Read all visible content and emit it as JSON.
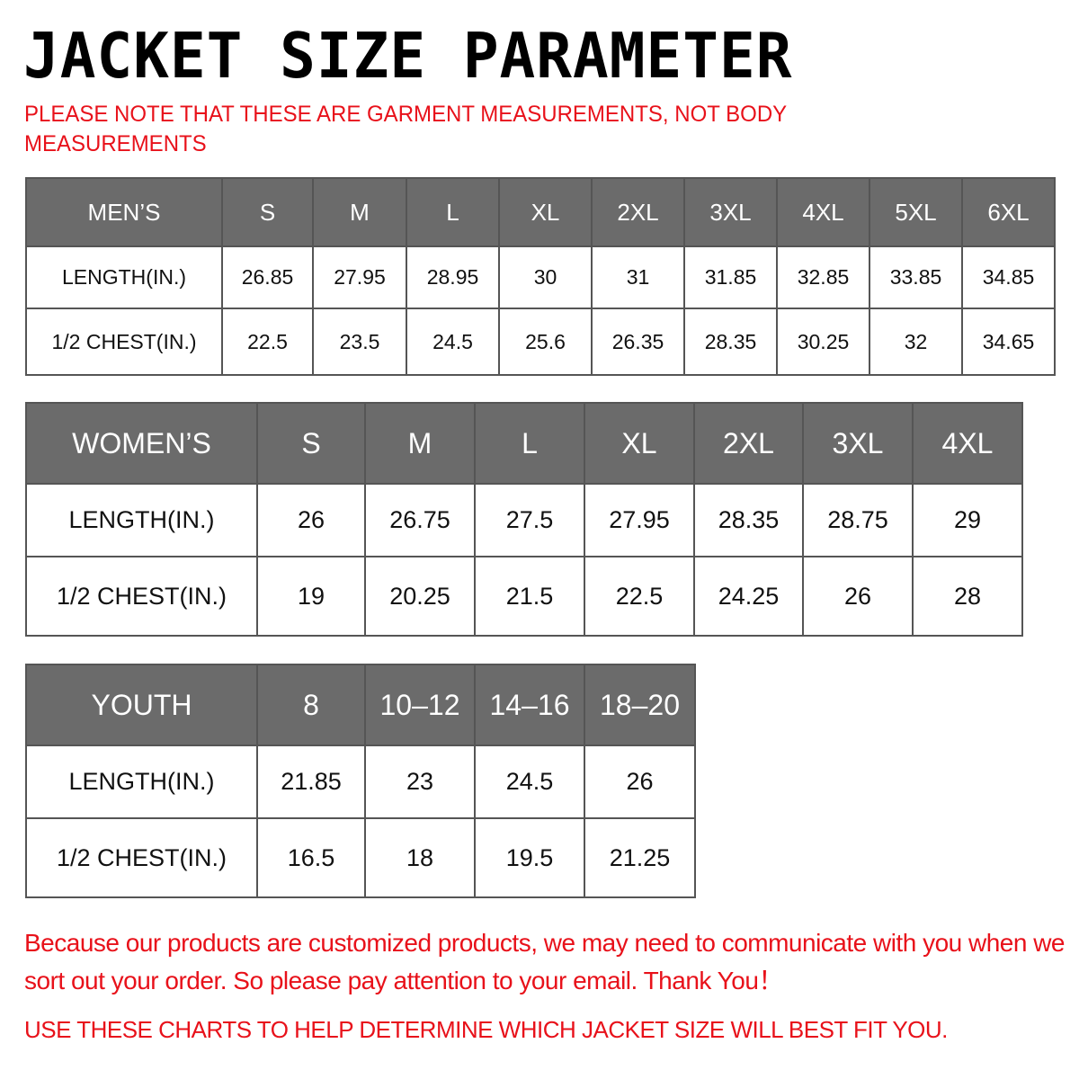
{
  "title": "JACKET SIZE PARAMETER",
  "note": "PLEASE NOTE THAT THESE ARE GARMENT MEASUREMENTS, NOT BODY MEASUREMENTS",
  "tables": [
    {
      "label": "MEN’S",
      "sizes": [
        "S",
        "M",
        "L",
        "XL",
        "2XL",
        "3XL",
        "4XL",
        "5XL",
        "6XL"
      ],
      "rows": [
        {
          "label": "LENGTH(IN.)",
          "values": [
            "26.85",
            "27.95",
            "28.95",
            "30",
            "31",
            "31.85",
            "32.85",
            "33.85",
            "34.85"
          ]
        },
        {
          "label": "1/2 CHEST(IN.)",
          "values": [
            "22.5",
            "23.5",
            "24.5",
            "25.6",
            "26.35",
            "28.35",
            "30.25",
            "32",
            "34.65"
          ]
        }
      ]
    },
    {
      "label": "WOMEN’S",
      "sizes": [
        "S",
        "M",
        "L",
        "XL",
        "2XL",
        "3XL",
        "4XL"
      ],
      "rows": [
        {
          "label": "LENGTH(IN.)",
          "values": [
            "26",
            "26.75",
            "27.5",
            "27.95",
            "28.35",
            "28.75",
            "29"
          ]
        },
        {
          "label": "1/2 CHEST(IN.)",
          "values": [
            "19",
            "20.25",
            "21.5",
            "22.5",
            "24.25",
            "26",
            "28"
          ]
        }
      ]
    },
    {
      "label": "YOUTH",
      "sizes": [
        "8",
        "10–12",
        "14–16",
        "18–20"
      ],
      "rows": [
        {
          "label": "LENGTH(IN.)",
          "values": [
            "21.85",
            "23",
            "24.5",
            "26"
          ]
        },
        {
          "label": "1/2 CHEST(IN.)",
          "values": [
            "16.5",
            "18",
            "19.5",
            "21.25"
          ]
        }
      ]
    }
  ],
  "footer": {
    "message": "Because our products are customized products, we may need to communicate with you when we sort out your order. So please pay attention to your email. Thank You！",
    "advice": "USE THESE CHARTS TO HELP DETERMINE WHICH JACKET SIZE WILL BEST FIT YOU."
  },
  "colors": {
    "header_bg": "#6b6b6b",
    "accent_red": "#e8111a"
  }
}
